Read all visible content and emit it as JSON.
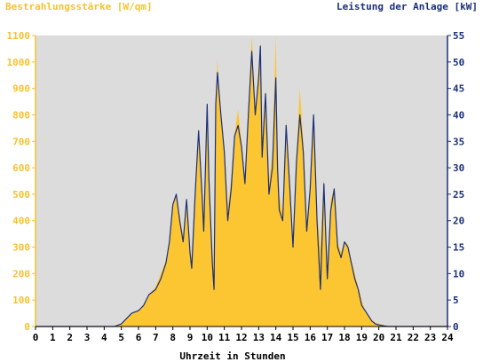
{
  "chart_data": {
    "type": "area",
    "x_unit_labels": "hours",
    "xlabel": "Uhrzeit in Stunden",
    "ylabel_left": "Bestrahlungsstärke [W/qm]",
    "ylabel_right": "Leistung der Anlage [kW]",
    "xlim": [
      0,
      24
    ],
    "ylim_left": [
      0,
      1100
    ],
    "ylim_right": [
      0,
      55
    ],
    "x_ticks": [
      "0",
      "1",
      "2",
      "3",
      "4",
      "5",
      "6",
      "7",
      "8",
      "9",
      "10",
      "11",
      "12",
      "13",
      "14",
      "15",
      "16",
      "17",
      "18",
      "19",
      "20",
      "21",
      "22",
      "23",
      "24"
    ],
    "y_ticks_left": [
      "0",
      "100",
      "200",
      "300",
      "400",
      "500",
      "600",
      "700",
      "800",
      "900",
      "1000",
      "1100"
    ],
    "y_ticks_right": [
      "0",
      "5",
      "10",
      "15",
      "20",
      "25",
      "30",
      "35",
      "40",
      "45",
      "50",
      "55"
    ],
    "colors": {
      "plot_background": "#dcdcdc",
      "irradiance_fill": "#fcc632",
      "power_line": "#1a2f7a",
      "left_axis": "#f7c12e",
      "right_axis": "#1a2f7a"
    },
    "series": [
      {
        "name": "Bestrahlungsstärke [W/qm]",
        "axis": "left",
        "x": [
          0,
          4.6,
          5,
          5.3,
          5.6,
          6,
          6.3,
          6.6,
          7,
          7.3,
          7.6,
          7.8,
          8,
          8.2,
          8.4,
          8.6,
          8.8,
          9,
          9.1,
          9.3,
          9.5,
          9.7,
          9.8,
          10,
          10.1,
          10.3,
          10.4,
          10.5,
          10.6,
          10.8,
          11,
          11.2,
          11.4,
          11.6,
          11.8,
          12,
          12.2,
          12.4,
          12.6,
          12.8,
          13,
          13.1,
          13.2,
          13.4,
          13.6,
          13.8,
          14,
          14.1,
          14.2,
          14.4,
          14.6,
          14.8,
          15,
          15.2,
          15.4,
          15.6,
          15.8,
          16,
          16.2,
          16.4,
          16.6,
          16.8,
          17,
          17.2,
          17.4,
          17.6,
          17.8,
          18,
          18.2,
          18.4,
          18.6,
          18.8,
          19,
          19.2,
          19.4,
          19.6,
          19.8,
          20,
          20.3,
          20.6,
          21,
          22,
          24
        ],
        "values": [
          0,
          0,
          10,
          30,
          50,
          60,
          80,
          120,
          150,
          200,
          250,
          330,
          450,
          500,
          420,
          340,
          480,
          300,
          250,
          520,
          720,
          500,
          380,
          800,
          560,
          300,
          200,
          850,
          1010,
          780,
          650,
          450,
          560,
          730,
          820,
          700,
          560,
          830,
          1100,
          820,
          950,
          1080,
          700,
          900,
          550,
          650,
          1100,
          650,
          500,
          430,
          780,
          550,
          330,
          650,
          900,
          700,
          380,
          530,
          800,
          430,
          300,
          560,
          230,
          480,
          520,
          320,
          280,
          320,
          310,
          250,
          200,
          150,
          100,
          60,
          40,
          25,
          15,
          10,
          5,
          0,
          0,
          0,
          0
        ]
      },
      {
        "name": "Leistung der Anlage [kW]",
        "axis": "right",
        "x": [
          0,
          4.6,
          5,
          5.3,
          5.6,
          6,
          6.3,
          6.6,
          7,
          7.3,
          7.6,
          7.8,
          8,
          8.2,
          8.4,
          8.6,
          8.8,
          9,
          9.1,
          9.3,
          9.5,
          9.7,
          9.8,
          10,
          10.1,
          10.3,
          10.4,
          10.5,
          10.6,
          10.8,
          11,
          11.2,
          11.4,
          11.6,
          11.8,
          12,
          12.2,
          12.4,
          12.6,
          12.8,
          13,
          13.1,
          13.2,
          13.4,
          13.6,
          13.8,
          14,
          14.1,
          14.2,
          14.4,
          14.6,
          14.8,
          15,
          15.2,
          15.4,
          15.6,
          15.8,
          16,
          16.2,
          16.4,
          16.6,
          16.8,
          17,
          17.2,
          17.4,
          17.6,
          17.8,
          18,
          18.2,
          18.4,
          18.6,
          18.8,
          19,
          19.2,
          19.4,
          19.6,
          19.8,
          20,
          20.3,
          20.6,
          21,
          22,
          24
        ],
        "values": [
          0,
          0,
          0.5,
          1.5,
          2.5,
          3,
          4,
          6,
          7,
          9,
          12,
          16,
          23,
          25,
          20,
          16,
          24,
          14,
          11,
          25,
          37,
          25,
          18,
          42,
          28,
          12,
          7,
          42,
          48,
          40,
          33,
          20,
          26,
          36,
          38,
          34,
          27,
          40,
          52,
          40,
          47,
          53,
          32,
          44,
          25,
          30,
          47,
          30,
          22,
          20,
          38,
          27,
          15,
          31,
          40,
          33,
          18,
          26,
          40,
          20,
          7,
          27,
          9,
          22,
          26,
          15,
          13,
          16,
          15,
          12,
          9,
          7,
          4,
          3,
          2,
          1,
          0.5,
          0.3,
          0.1,
          0,
          0,
          0,
          0
        ]
      }
    ]
  }
}
